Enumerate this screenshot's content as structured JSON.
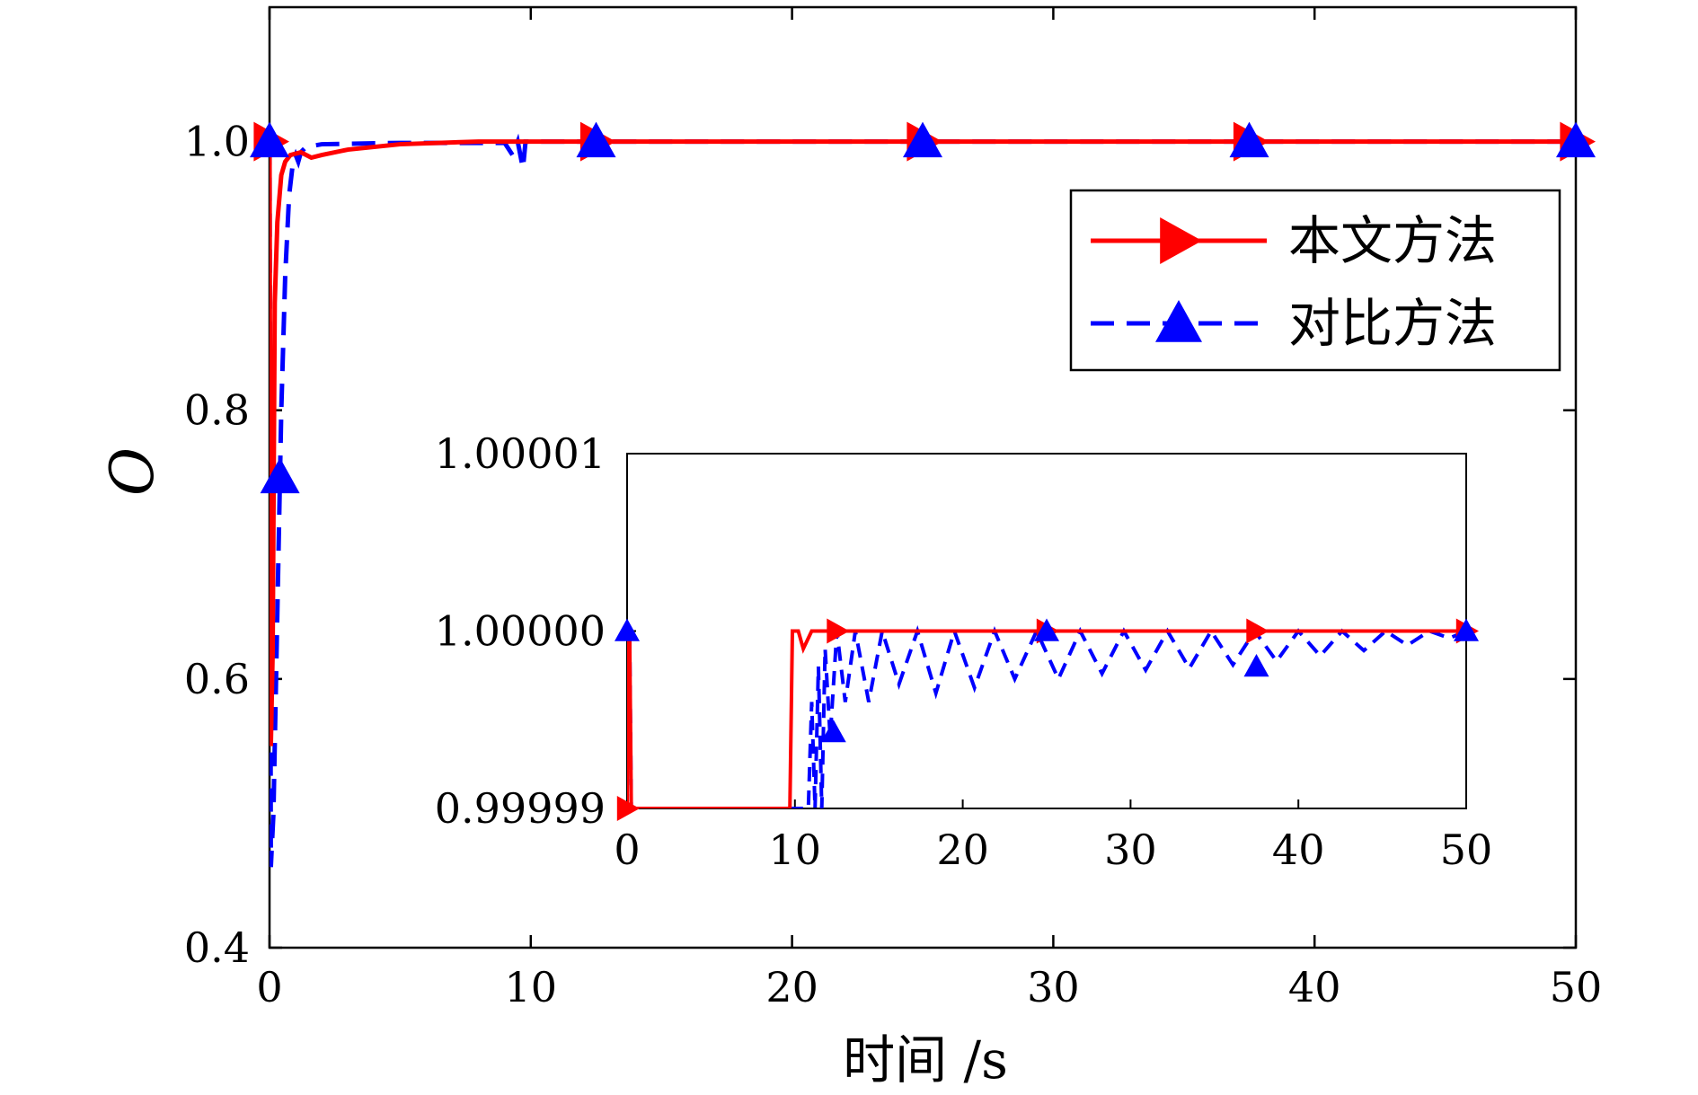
{
  "chart_data": {
    "type": "line",
    "xlabel": "时间 /s",
    "ylabel": "O",
    "xlim": [
      0,
      50
    ],
    "ylim": [
      0.4,
      1.1
    ],
    "xticks": [
      "0",
      "10",
      "20",
      "30",
      "40",
      "50"
    ],
    "yticks": [
      "0.4",
      "0.6",
      "0.8",
      "1.0"
    ],
    "grid": false,
    "legend_position": "top-right",
    "series": [
      {
        "name": "本文方法",
        "color": "#ff0000",
        "line_style": "solid",
        "marker": "triangle-right",
        "points": [
          [
            0,
            1.0
          ],
          [
            0.05,
            0.55
          ],
          [
            0.12,
            0.62
          ],
          [
            0.2,
            0.88
          ],
          [
            0.3,
            0.94
          ],
          [
            0.45,
            0.975
          ],
          [
            0.6,
            0.985
          ],
          [
            0.8,
            0.99
          ],
          [
            1.2,
            0.992
          ],
          [
            1.6,
            0.988
          ],
          [
            2.0,
            0.99
          ],
          [
            3,
            0.994
          ],
          [
            5,
            0.998
          ],
          [
            8,
            1.0
          ],
          [
            10,
            1.0
          ],
          [
            20,
            1.0
          ],
          [
            30,
            1.0
          ],
          [
            40,
            1.0
          ],
          [
            50,
            1.0
          ]
        ],
        "marker_x": [
          0,
          12.5,
          25,
          37.5,
          50
        ]
      },
      {
        "name": "对比方法",
        "color": "#0000ff",
        "line_style": "dashed",
        "marker": "triangle-up",
        "points": [
          [
            0,
            1.0
          ],
          [
            0.05,
            0.46
          ],
          [
            0.15,
            0.5
          ],
          [
            0.3,
            0.65
          ],
          [
            0.45,
            0.8
          ],
          [
            0.6,
            0.9
          ],
          [
            0.75,
            0.96
          ],
          [
            0.9,
            0.985
          ],
          [
            1.0,
            0.99
          ],
          [
            1.1,
            0.985
          ],
          [
            1.2,
            0.992
          ],
          [
            1.4,
            0.996
          ],
          [
            2,
            0.998
          ],
          [
            5,
            0.999
          ],
          [
            9,
            0.999
          ],
          [
            9.3,
            0.99
          ],
          [
            9.5,
            1.0
          ],
          [
            9.7,
            0.98
          ],
          [
            9.8,
            1.0
          ],
          [
            10,
            1.0
          ],
          [
            20,
            1.0
          ],
          [
            30,
            1.0
          ],
          [
            40,
            1.0
          ],
          [
            50,
            1.0
          ]
        ],
        "marker_x": [
          0,
          0.4,
          12.5,
          25,
          37.5,
          50
        ]
      }
    ],
    "inset": {
      "xlim": [
        0,
        50
      ],
      "ylim": [
        0.99999,
        1.00001
      ],
      "xticks": [
        "0",
        "10",
        "20",
        "30",
        "40",
        "50"
      ],
      "yticks": [
        "0.99999",
        "1.00000",
        "1.00001"
      ],
      "series": [
        {
          "name": "本文方法",
          "points": [
            [
              0,
              0.99999
            ],
            [
              0.05,
              1.0
            ],
            [
              0.15,
              1.0
            ],
            [
              0.25,
              0.99999
            ],
            [
              9.7,
              0.99999
            ],
            [
              9.85,
              1.0
            ],
            [
              10.2,
              1.0
            ],
            [
              10.5,
              0.999999
            ],
            [
              11,
              1.0
            ],
            [
              50,
              1.0
            ]
          ],
          "marker_x": [
            0,
            12.5,
            25,
            37.5,
            50
          ]
        },
        {
          "name": "对比方法",
          "points": [
            [
              0,
              0.99999
            ],
            [
              0.05,
              1.0
            ],
            [
              0.15,
              1.0
            ],
            [
              0.25,
              0.99999
            ],
            [
              10.8,
              0.99999
            ],
            [
              11.0,
              0.999996
            ],
            [
              11.2,
              0.99999
            ],
            [
              11.4,
              0.999998
            ],
            [
              11.6,
              0.99999
            ],
            [
              11.8,
              0.999999
            ],
            [
              12.1,
              0.999994
            ],
            [
              12.5,
              1.0
            ],
            [
              13.0,
              0.999996
            ],
            [
              13.6,
              1.0
            ],
            [
              14.4,
              0.999996
            ],
            [
              15.2,
              1.0
            ],
            [
              16.2,
              0.999997
            ],
            [
              17.3,
              1.0
            ],
            [
              18.4,
              0.9999965
            ],
            [
              19.5,
              1.0
            ],
            [
              20.7,
              0.9999968
            ],
            [
              21.9,
              1.0
            ],
            [
              23.1,
              0.9999973
            ],
            [
              24.4,
              1.0
            ],
            [
              25.7,
              0.9999973
            ],
            [
              27.0,
              1.0
            ],
            [
              28.3,
              0.9999976
            ],
            [
              29.6,
              1.0
            ],
            [
              30.9,
              0.9999978
            ],
            [
              32.2,
              1.0
            ],
            [
              33.5,
              0.9999979
            ],
            [
              34.8,
              1.0
            ],
            [
              36.1,
              0.9999981
            ],
            [
              37.4,
              1.0
            ],
            [
              38.7,
              0.9999983
            ],
            [
              40.0,
              1.0
            ],
            [
              41.3,
              0.9999986
            ],
            [
              42.6,
              1.0
            ],
            [
              43.9,
              0.9999989
            ],
            [
              45.2,
              1.0
            ],
            [
              46.5,
              0.9999992
            ],
            [
              47.8,
              1.0
            ],
            [
              49.0,
              0.9999996
            ],
            [
              50,
              1.0
            ]
          ],
          "marker_points": [
            [
              0,
              1.0
            ],
            [
              12.3,
              0.9999943
            ],
            [
              25,
              1.0
            ],
            [
              37.5,
              0.999998
            ],
            [
              50,
              1.0
            ]
          ]
        }
      ]
    }
  }
}
